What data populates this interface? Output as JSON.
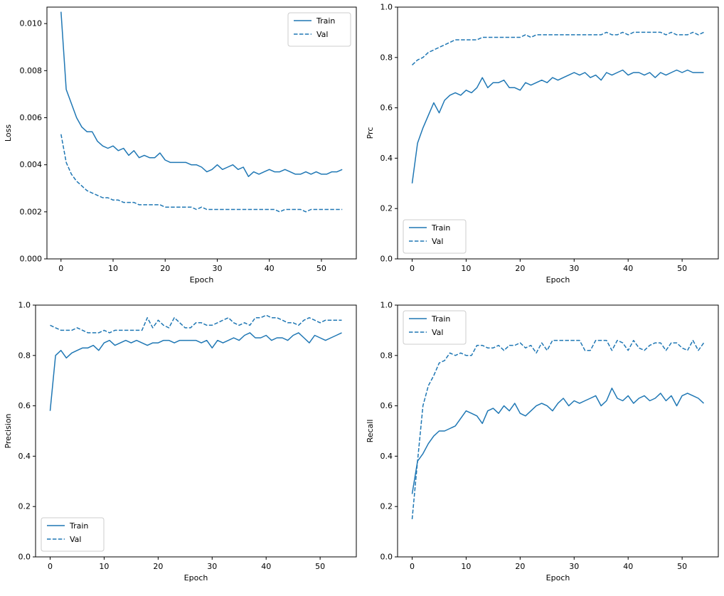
{
  "figure": {
    "background": "#ffffff",
    "accent": "#1f77b4",
    "axis_color": "#000000",
    "legend_border": "#cccccc"
  },
  "chart_data": [
    {
      "type": "line",
      "name": "loss",
      "title": "",
      "xlabel": "Epoch",
      "ylabel": "Loss",
      "xlim": [
        -2.7,
        56.7
      ],
      "ylim": [
        0,
        0.0107
      ],
      "xticks": {
        "values": [
          0,
          10,
          20,
          30,
          40,
          50
        ],
        "labels": [
          "0",
          "10",
          "20",
          "30",
          "40",
          "50"
        ]
      },
      "yticks": {
        "values": [
          0.0,
          0.002,
          0.004,
          0.006,
          0.008,
          0.01
        ],
        "labels": [
          "0.000",
          "0.002",
          "0.004",
          "0.006",
          "0.008",
          "0.010"
        ]
      },
      "legend": {
        "position": "upper right"
      },
      "series": [
        {
          "name": "Train",
          "style": "solid",
          "values": [
            0.0105,
            0.0072,
            0.0066,
            0.006,
            0.0056,
            0.0054,
            0.0054,
            0.005,
            0.0048,
            0.0047,
            0.0048,
            0.0046,
            0.0047,
            0.0044,
            0.0046,
            0.0043,
            0.0044,
            0.0043,
            0.0043,
            0.0045,
            0.0042,
            0.0041,
            0.0041,
            0.0041,
            0.0041,
            0.004,
            0.004,
            0.0039,
            0.0037,
            0.0038,
            0.004,
            0.0038,
            0.0039,
            0.004,
            0.0038,
            0.0039,
            0.0035,
            0.0037,
            0.0036,
            0.0037,
            0.0038,
            0.0037,
            0.0037,
            0.0038,
            0.0037,
            0.0036,
            0.0036,
            0.0037,
            0.0036,
            0.0037,
            0.0036,
            0.0036,
            0.0037,
            0.0037,
            0.0038
          ]
        },
        {
          "name": "Val",
          "style": "dashed",
          "values": [
            0.0053,
            0.0041,
            0.0036,
            0.0033,
            0.0031,
            0.0029,
            0.0028,
            0.0027,
            0.0026,
            0.0026,
            0.0025,
            0.0025,
            0.0024,
            0.0024,
            0.0024,
            0.0023,
            0.0023,
            0.0023,
            0.0023,
            0.0023,
            0.0022,
            0.0022,
            0.0022,
            0.0022,
            0.0022,
            0.0022,
            0.0021,
            0.0022,
            0.0021,
            0.0021,
            0.0021,
            0.0021,
            0.0021,
            0.0021,
            0.0021,
            0.0021,
            0.0021,
            0.0021,
            0.0021,
            0.0021,
            0.0021,
            0.0021,
            0.002,
            0.0021,
            0.0021,
            0.0021,
            0.0021,
            0.002,
            0.0021,
            0.0021,
            0.0021,
            0.0021,
            0.0021,
            0.0021,
            0.0021
          ]
        }
      ]
    },
    {
      "type": "line",
      "name": "prc",
      "title": "",
      "xlabel": "Epoch",
      "ylabel": "Prc",
      "xlim": [
        -2.7,
        56.7
      ],
      "ylim": [
        0,
        1
      ],
      "xticks": {
        "values": [
          0,
          10,
          20,
          30,
          40,
          50
        ],
        "labels": [
          "0",
          "10",
          "20",
          "30",
          "40",
          "50"
        ]
      },
      "yticks": {
        "values": [
          0.0,
          0.2,
          0.4,
          0.6,
          0.8,
          1.0
        ],
        "labels": [
          "0.0",
          "0.2",
          "0.4",
          "0.6",
          "0.8",
          "1.0"
        ]
      },
      "legend": {
        "position": "lower left"
      },
      "series": [
        {
          "name": "Train",
          "style": "solid",
          "values": [
            0.3,
            0.46,
            0.52,
            0.57,
            0.62,
            0.58,
            0.63,
            0.65,
            0.66,
            0.65,
            0.67,
            0.66,
            0.68,
            0.72,
            0.68,
            0.7,
            0.7,
            0.71,
            0.68,
            0.68,
            0.67,
            0.7,
            0.69,
            0.7,
            0.71,
            0.7,
            0.72,
            0.71,
            0.72,
            0.73,
            0.74,
            0.73,
            0.74,
            0.72,
            0.73,
            0.71,
            0.74,
            0.73,
            0.74,
            0.75,
            0.73,
            0.74,
            0.74,
            0.73,
            0.74,
            0.72,
            0.74,
            0.73,
            0.74,
            0.75,
            0.74,
            0.75,
            0.74,
            0.74,
            0.74
          ]
        },
        {
          "name": "Val",
          "style": "dashed",
          "values": [
            0.77,
            0.79,
            0.8,
            0.82,
            0.83,
            0.84,
            0.85,
            0.86,
            0.87,
            0.87,
            0.87,
            0.87,
            0.87,
            0.88,
            0.88,
            0.88,
            0.88,
            0.88,
            0.88,
            0.88,
            0.88,
            0.89,
            0.88,
            0.89,
            0.89,
            0.89,
            0.89,
            0.89,
            0.89,
            0.89,
            0.89,
            0.89,
            0.89,
            0.89,
            0.89,
            0.89,
            0.9,
            0.89,
            0.89,
            0.9,
            0.89,
            0.9,
            0.9,
            0.9,
            0.9,
            0.9,
            0.9,
            0.89,
            0.9,
            0.89,
            0.89,
            0.89,
            0.9,
            0.89,
            0.9
          ]
        }
      ]
    },
    {
      "type": "line",
      "name": "precision",
      "title": "",
      "xlabel": "Epoch",
      "ylabel": "Precision",
      "xlim": [
        -2.7,
        56.7
      ],
      "ylim": [
        0,
        1
      ],
      "xticks": {
        "values": [
          0,
          10,
          20,
          30,
          40,
          50
        ],
        "labels": [
          "0",
          "10",
          "20",
          "30",
          "40",
          "50"
        ]
      },
      "yticks": {
        "values": [
          0.0,
          0.2,
          0.4,
          0.6,
          0.8,
          1.0
        ],
        "labels": [
          "0.0",
          "0.2",
          "0.4",
          "0.6",
          "0.8",
          "1.0"
        ]
      },
      "legend": {
        "position": "lower left"
      },
      "series": [
        {
          "name": "Train",
          "style": "solid",
          "values": [
            0.58,
            0.8,
            0.82,
            0.79,
            0.81,
            0.82,
            0.83,
            0.83,
            0.84,
            0.82,
            0.85,
            0.86,
            0.84,
            0.85,
            0.86,
            0.85,
            0.86,
            0.85,
            0.84,
            0.85,
            0.85,
            0.86,
            0.86,
            0.85,
            0.86,
            0.86,
            0.86,
            0.86,
            0.85,
            0.86,
            0.83,
            0.86,
            0.85,
            0.86,
            0.87,
            0.86,
            0.88,
            0.89,
            0.87,
            0.87,
            0.88,
            0.86,
            0.87,
            0.87,
            0.86,
            0.88,
            0.89,
            0.87,
            0.85,
            0.88,
            0.87,
            0.86,
            0.87,
            0.88,
            0.89
          ]
        },
        {
          "name": "Val",
          "style": "dashed",
          "values": [
            0.92,
            0.91,
            0.9,
            0.9,
            0.9,
            0.91,
            0.9,
            0.89,
            0.89,
            0.89,
            0.9,
            0.89,
            0.9,
            0.9,
            0.9,
            0.9,
            0.9,
            0.9,
            0.95,
            0.91,
            0.94,
            0.92,
            0.91,
            0.95,
            0.93,
            0.91,
            0.91,
            0.93,
            0.93,
            0.92,
            0.92,
            0.93,
            0.94,
            0.95,
            0.93,
            0.92,
            0.93,
            0.92,
            0.95,
            0.95,
            0.96,
            0.95,
            0.95,
            0.94,
            0.93,
            0.93,
            0.92,
            0.94,
            0.95,
            0.94,
            0.93,
            0.94,
            0.94,
            0.94,
            0.94
          ]
        }
      ]
    },
    {
      "type": "line",
      "name": "recall",
      "title": "",
      "xlabel": "Epoch",
      "ylabel": "Recall",
      "xlim": [
        -2.7,
        56.7
      ],
      "ylim": [
        0,
        1
      ],
      "xticks": {
        "values": [
          0,
          10,
          20,
          30,
          40,
          50
        ],
        "labels": [
          "0",
          "10",
          "20",
          "30",
          "40",
          "50"
        ]
      },
      "yticks": {
        "values": [
          0.0,
          0.2,
          0.4,
          0.6,
          0.8,
          1.0
        ],
        "labels": [
          "0.0",
          "0.2",
          "0.4",
          "0.6",
          "0.8",
          "1.0"
        ]
      },
      "legend": {
        "position": "upper left"
      },
      "series": [
        {
          "name": "Train",
          "style": "solid",
          "values": [
            0.25,
            0.38,
            0.41,
            0.45,
            0.48,
            0.5,
            0.5,
            0.51,
            0.52,
            0.55,
            0.58,
            0.57,
            0.56,
            0.53,
            0.58,
            0.59,
            0.57,
            0.6,
            0.58,
            0.61,
            0.57,
            0.56,
            0.58,
            0.6,
            0.61,
            0.6,
            0.58,
            0.61,
            0.63,
            0.6,
            0.62,
            0.61,
            0.62,
            0.63,
            0.64,
            0.6,
            0.62,
            0.67,
            0.63,
            0.62,
            0.64,
            0.61,
            0.63,
            0.64,
            0.62,
            0.63,
            0.65,
            0.62,
            0.64,
            0.6,
            0.64,
            0.65,
            0.64,
            0.63,
            0.61
          ]
        },
        {
          "name": "Val",
          "style": "dashed",
          "values": [
            0.15,
            0.38,
            0.6,
            0.68,
            0.72,
            0.77,
            0.78,
            0.81,
            0.8,
            0.81,
            0.8,
            0.8,
            0.84,
            0.84,
            0.83,
            0.83,
            0.84,
            0.82,
            0.84,
            0.84,
            0.85,
            0.83,
            0.84,
            0.81,
            0.85,
            0.82,
            0.86,
            0.86,
            0.86,
            0.86,
            0.86,
            0.86,
            0.82,
            0.82,
            0.86,
            0.86,
            0.86,
            0.82,
            0.86,
            0.85,
            0.82,
            0.86,
            0.83,
            0.82,
            0.84,
            0.85,
            0.85,
            0.82,
            0.85,
            0.85,
            0.83,
            0.82,
            0.86,
            0.82,
            0.85
          ]
        }
      ]
    }
  ]
}
